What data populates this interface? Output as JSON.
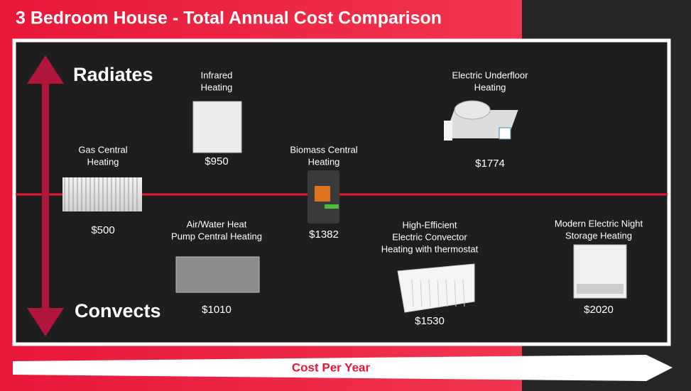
{
  "header": {
    "title": "3 Bedroom House - Total Annual Cost Comparison"
  },
  "axis": {
    "top": "Radiates",
    "bottom": "Convects",
    "horizontal": "Cost Per Year"
  },
  "items": [
    {
      "label_lines": [
        "Gas Central",
        "Heating"
      ],
      "cost": "$500"
    },
    {
      "label_lines": [
        "Infrared",
        "Heating"
      ],
      "cost": "$950"
    },
    {
      "label_lines": [
        "Biomass Central",
        "Heating"
      ],
      "cost": "$1382"
    },
    {
      "label_lines": [
        "Electric Underfloor",
        "Heating"
      ],
      "cost": "$1774"
    },
    {
      "label_lines": [
        "Air/Water Heat",
        "Pump Central Heating"
      ],
      "cost": "$1010"
    },
    {
      "label_lines": [
        "High-Efficient",
        "Electric Convector",
        "Heating with thermostat"
      ],
      "cost": "$1530"
    },
    {
      "label_lines": [
        "Modern Electric Night",
        "Storage Heating"
      ],
      "cost": "$2020"
    }
  ]
}
